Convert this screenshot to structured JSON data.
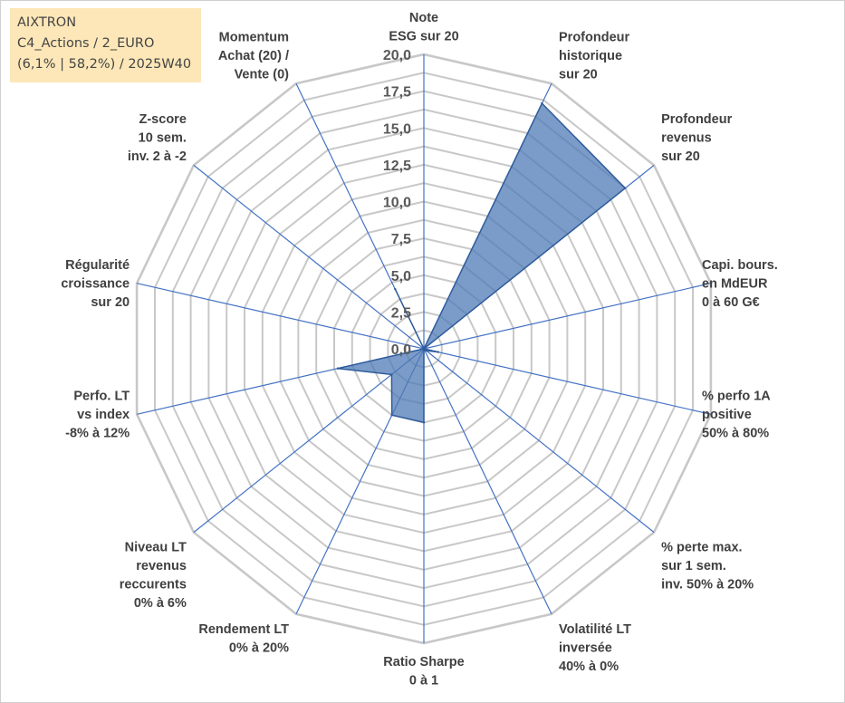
{
  "info_box": {
    "line1": "AIXTRON",
    "line2": "C4_Actions / 2_EURO",
    "line3": "(6,1% | 58,2%) / 2025W40"
  },
  "colors": {
    "grid": "#c8c8c8",
    "spoke": "#4472c4",
    "series_fill": "#4f7bb5",
    "series_stroke": "#2f5c9c"
  },
  "chart_data": {
    "type": "radar",
    "title": "",
    "rlim": [
      0,
      20
    ],
    "rticks": [
      "0,0",
      "2,5",
      "5,0",
      "7,5",
      "10,0",
      "12,5",
      "15,0",
      "17,5",
      "20,0"
    ],
    "grid": true,
    "axes": [
      [
        "Note",
        "ESG sur 20"
      ],
      [
        "Profondeur",
        "historique",
        "sur 20"
      ],
      [
        "Profondeur",
        "revenus",
        "sur 20"
      ],
      [
        "Capi. bours.",
        "en MdEUR",
        "0 à 60 G€"
      ],
      [
        "% perfo 1A",
        "positive",
        "50% à 80%"
      ],
      [
        "% perte max.",
        "sur 1 sem.",
        "inv. 50% à 20%"
      ],
      [
        "Volatilité LT",
        "inversée",
        "40% à 0%"
      ],
      [
        "Ratio Sharpe",
        "0 à 1"
      ],
      [
        "Rendement LT",
        "0% à 20%"
      ],
      [
        "Niveau LT",
        "revenus",
        "reccurents",
        "0% à 6%"
      ],
      [
        "Perfo. LT",
        "vs index",
        "-8% à 12%"
      ],
      [
        "Régularité",
        "croissance",
        "sur 20"
      ],
      [
        "Z-score",
        "10 sem.",
        "inv. 2 à -2"
      ],
      [
        "Momentum",
        "Achat (20) /",
        "Vente (0)"
      ]
    ],
    "series": [
      {
        "values": [
          0,
          18.5,
          17.5,
          0,
          1.0,
          0.2,
          0,
          5.0,
          5.0,
          2.8,
          6.0,
          0,
          0,
          4.5
        ]
      }
    ]
  }
}
